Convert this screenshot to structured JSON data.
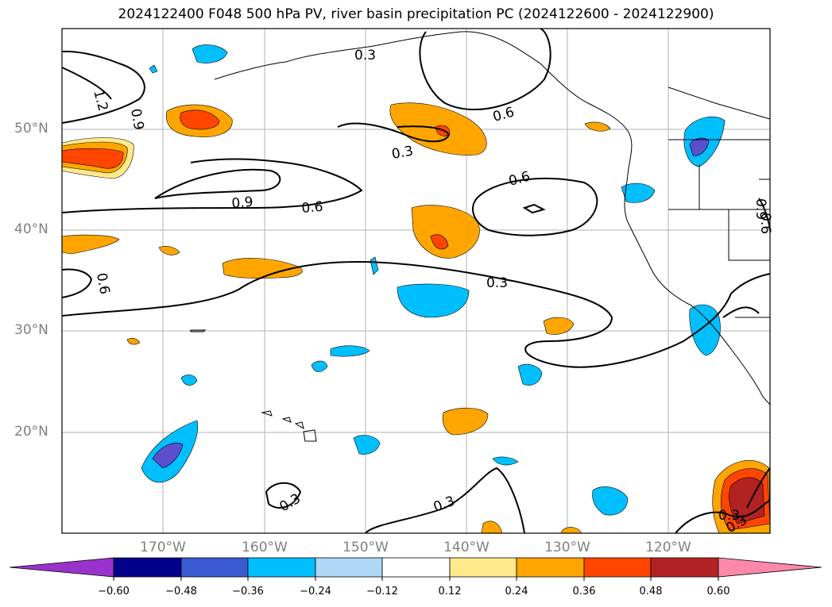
{
  "title": "2024122400 F048 500 hPa PV, river basin precipitation PC (2024122600 - 2024122900)",
  "lat_labels": [
    "50°N",
    "40°N",
    "30°N",
    "20°N"
  ],
  "lon_labels": [
    "170°W",
    "160°W",
    "150°W",
    "140°W",
    "130°W",
    "120°W"
  ],
  "pv_contour_labels": [
    "0.3",
    "0.6",
    "0.9",
    "1.2",
    "0.3",
    "0.6",
    "0.3",
    "0.6",
    "0.6",
    "0.9",
    "0.9",
    "0.6",
    "0.3",
    "0.3",
    "0.3",
    "0.3"
  ],
  "colorbar": {
    "ticks": [
      "−0.60",
      "−0.48",
      "−0.36",
      "−0.24",
      "−0.12",
      "0.12",
      "0.24",
      "0.36",
      "0.48",
      "0.60"
    ],
    "colors": [
      "#9932cc",
      "#00008b",
      "#3a5bd0",
      "#00bfff",
      "#add8f6",
      "#ffffff",
      "#ffe98a",
      "#ffa500",
      "#ff4500",
      "#b22222",
      "#ff88aa"
    ]
  },
  "colors": {
    "neg_dark": "#5a4fcf",
    "neg_mid": "#3a5bd0",
    "neg": "#00bfff",
    "neg_light": "#add8f6",
    "pos_light": "#ffe98a",
    "pos": "#ffa500",
    "pos_mid": "#ff4500",
    "pos_dark": "#b22222",
    "grid": "#b0b0b0"
  }
}
